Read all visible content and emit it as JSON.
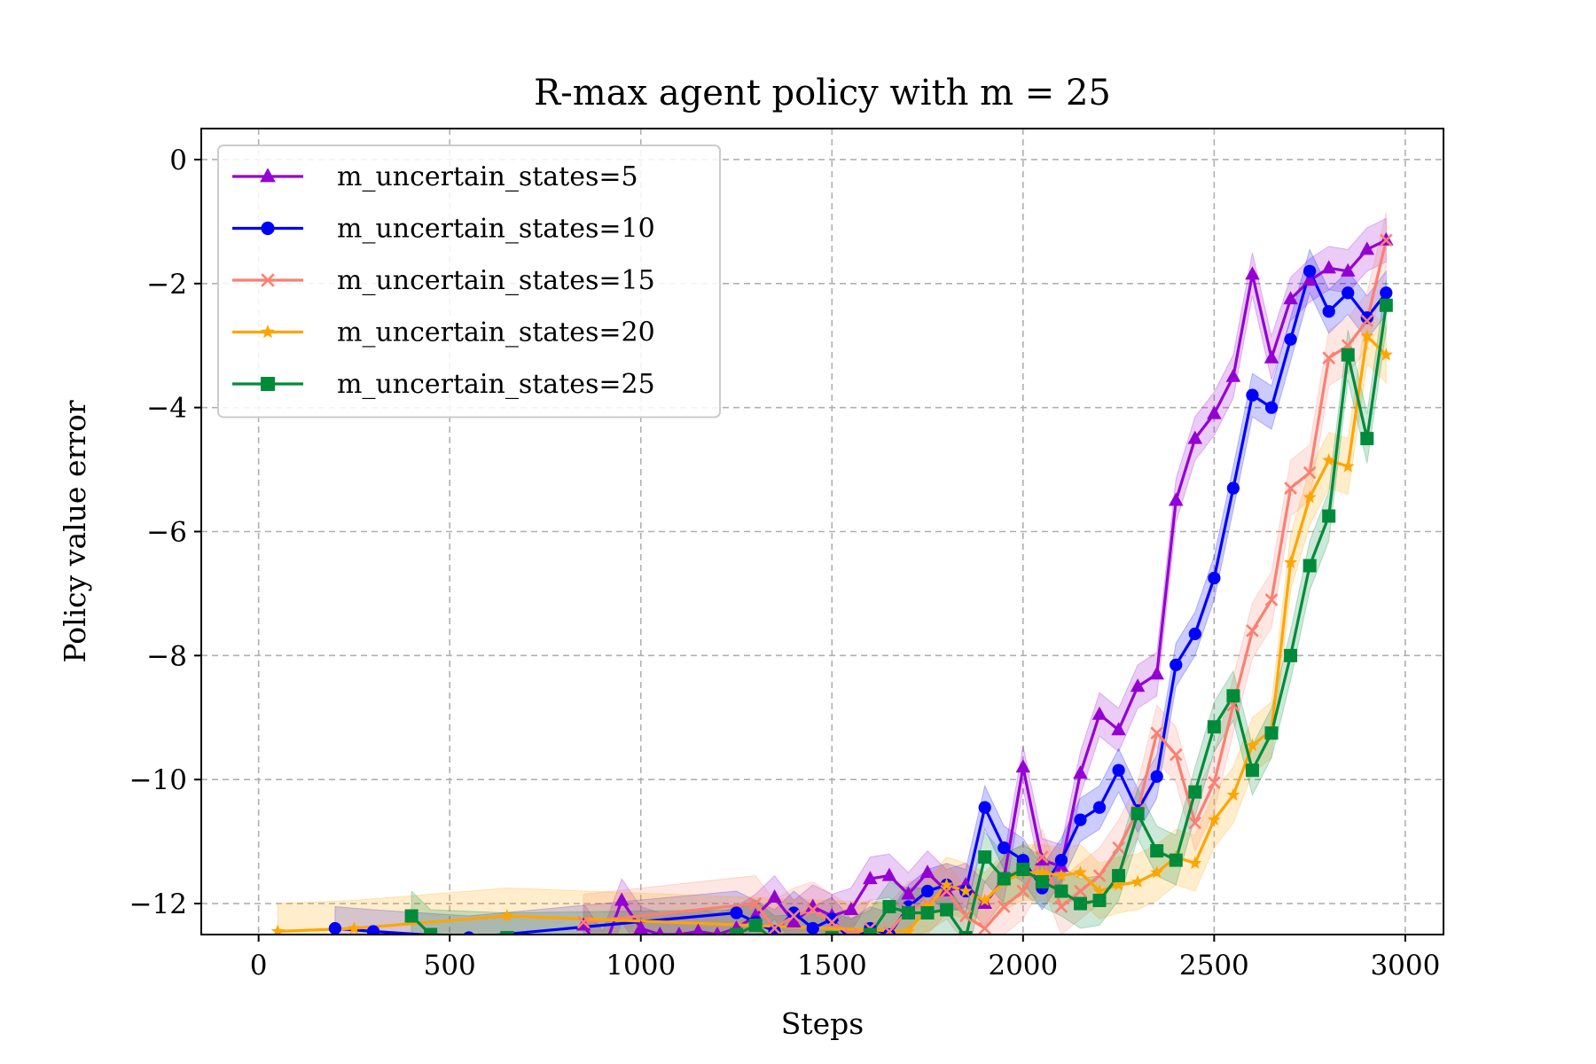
{
  "chart_data": {
    "type": "line",
    "title": "R-max agent policy with m = 25",
    "xlabel": "Steps",
    "ylabel": "Policy value error",
    "xlim": [
      -150,
      3100
    ],
    "ylim": [
      -12.5,
      0.5
    ],
    "xticks": [
      0,
      500,
      1000,
      1500,
      2000,
      2500,
      3000
    ],
    "yticks": [
      0,
      -2,
      -4,
      -6,
      -8,
      -10,
      -12
    ],
    "xtick_labels": [
      "0",
      "500",
      "1000",
      "1500",
      "2000",
      "2500",
      "3000"
    ],
    "ytick_labels": [
      "0",
      "−2",
      "−4",
      "−6",
      "−8",
      "−10",
      "−12"
    ],
    "grid": true,
    "legend_position": "upper-left",
    "series": [
      {
        "name": "m_uncertain_states=5",
        "color": "#9400D3",
        "marker": "triangle",
        "band": 0.35,
        "x": [
          850,
          900,
          950,
          1000,
          1050,
          1100,
          1150,
          1200,
          1250,
          1300,
          1350,
          1400,
          1450,
          1500,
          1550,
          1600,
          1650,
          1700,
          1750,
          1800,
          1850,
          1900,
          1950,
          2000,
          2050,
          2100,
          2150,
          2200,
          2250,
          2300,
          2350,
          2400,
          2450,
          2500,
          2550,
          2600,
          2650,
          2700,
          2750,
          2800,
          2850,
          2900,
          2950
        ],
        "y": [
          -12.35,
          -12.8,
          -11.95,
          -12.4,
          -12.5,
          -12.5,
          -12.45,
          -12.5,
          -12.4,
          -12.2,
          -11.9,
          -12.3,
          -12.05,
          -12.2,
          -12.1,
          -11.6,
          -11.55,
          -11.85,
          -11.5,
          -11.8,
          -11.7,
          -12.0,
          -11.6,
          -9.8,
          -11.3,
          -11.4,
          -9.9,
          -8.95,
          -9.2,
          -8.5,
          -8.3,
          -5.5,
          -4.5,
          -4.1,
          -3.5,
          -1.85,
          -3.2,
          -2.25,
          -1.95,
          -1.75,
          -1.8,
          -1.45,
          -1.3
        ]
      },
      {
        "name": "m_uncertain_states=10",
        "color": "#0000FF",
        "marker": "circle",
        "band": 0.35,
        "x": [
          200,
          300,
          550,
          1250,
          1300,
          1350,
          1400,
          1450,
          1500,
          1550,
          1600,
          1650,
          1700,
          1750,
          1800,
          1850,
          1900,
          1950,
          2000,
          2050,
          2100,
          2150,
          2200,
          2250,
          2300,
          2350,
          2400,
          2450,
          2500,
          2550,
          2600,
          2650,
          2700,
          2750,
          2800,
          2850,
          2900,
          2950
        ],
        "y": [
          -12.4,
          -12.45,
          -12.55,
          -12.15,
          -12.3,
          -12.45,
          -12.15,
          -12.4,
          -12.25,
          -12.6,
          -12.4,
          -12.5,
          -12.05,
          -11.8,
          -11.7,
          -11.8,
          -10.45,
          -11.1,
          -11.3,
          -11.75,
          -11.3,
          -10.65,
          -10.45,
          -9.85,
          -10.5,
          -9.95,
          -8.15,
          -7.65,
          -6.75,
          -5.3,
          -3.8,
          -4.0,
          -2.9,
          -1.8,
          -2.45,
          -2.15,
          -2.55,
          -2.15
        ]
      },
      {
        "name": "m_uncertain_states=15",
        "color": "#FA8072",
        "marker": "x",
        "band": 0.45,
        "x": [
          850,
          1300,
          1350,
          1400,
          1450,
          1500,
          1550,
          1600,
          1650,
          1700,
          1750,
          1800,
          1850,
          1900,
          1950,
          2000,
          2050,
          2100,
          2150,
          2200,
          2250,
          2300,
          2350,
          2400,
          2450,
          2500,
          2550,
          2600,
          2650,
          2700,
          2750,
          2800,
          2850,
          2900,
          2950
        ],
        "y": [
          -12.3,
          -12.0,
          -12.4,
          -12.2,
          -12.1,
          -12.3,
          -12.5,
          -12.4,
          -12.45,
          -12.1,
          -12.0,
          -11.8,
          -12.2,
          -12.4,
          -12.05,
          -11.8,
          -11.25,
          -12.05,
          -11.8,
          -11.55,
          -11.1,
          -10.5,
          -9.25,
          -9.6,
          -10.7,
          -10.05,
          -8.8,
          -7.6,
          -7.1,
          -5.3,
          -5.05,
          -3.2,
          -3.0,
          -2.6,
          -1.3
        ]
      },
      {
        "name": "m_uncertain_states=20",
        "color": "#FFA500",
        "marker": "star",
        "band": 0.45,
        "x": [
          50,
          250,
          650,
          1700,
          1750,
          1800,
          1850,
          1900,
          1950,
          2000,
          2050,
          2100,
          2150,
          2200,
          2250,
          2300,
          2350,
          2400,
          2450,
          2500,
          2550,
          2600,
          2650,
          2700,
          2750,
          2800,
          2850,
          2900,
          2950
        ],
        "y": [
          -12.45,
          -12.4,
          -12.2,
          -12.45,
          -12.05,
          -11.7,
          -11.8,
          -11.95,
          -11.65,
          -11.5,
          -11.5,
          -11.55,
          -11.5,
          -11.8,
          -11.7,
          -11.65,
          -11.5,
          -11.25,
          -11.35,
          -10.65,
          -10.25,
          -9.45,
          -9.2,
          -6.5,
          -5.45,
          -4.85,
          -4.95,
          -2.85,
          -3.15
        ]
      },
      {
        "name": "m_uncertain_states=25",
        "color": "#008B3A",
        "marker": "square",
        "band": 0.4,
        "x": [
          400,
          450,
          650,
          1250,
          1300,
          1350,
          1500,
          1550,
          1600,
          1650,
          1700,
          1750,
          1800,
          1850,
          1900,
          1950,
          2000,
          2050,
          2100,
          2150,
          2200,
          2250,
          2300,
          2350,
          2400,
          2450,
          2500,
          2550,
          2600,
          2650,
          2700,
          2750,
          2800,
          2850,
          2900,
          2950
        ],
        "y": [
          -12.2,
          -12.5,
          -12.55,
          -12.5,
          -12.35,
          -12.6,
          -12.55,
          -12.65,
          -12.5,
          -12.05,
          -12.15,
          -12.15,
          -12.1,
          -12.55,
          -11.25,
          -11.6,
          -11.45,
          -11.65,
          -11.8,
          -12.0,
          -11.95,
          -11.55,
          -10.55,
          -11.15,
          -11.3,
          -10.2,
          -9.15,
          -8.65,
          -9.85,
          -9.25,
          -8.0,
          -6.55,
          -5.75,
          -3.15,
          -4.5,
          -2.35
        ]
      }
    ]
  }
}
